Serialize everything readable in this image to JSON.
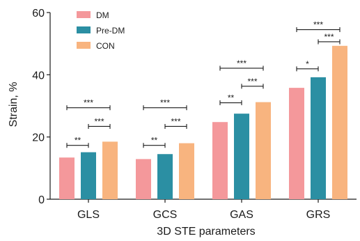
{
  "chart_data": {
    "type": "bar",
    "xlabel": "3D STE parameters",
    "ylabel": "Strain, %",
    "ylim": [
      0,
      60
    ],
    "yticks": [
      0,
      20,
      40,
      60
    ],
    "categories": [
      "GLS",
      "GCS",
      "GAS",
      "GRS"
    ],
    "series": [
      {
        "name": "DM",
        "color": "#f4989b",
        "values": [
          13.4,
          12.9,
          24.8,
          35.8
        ]
      },
      {
        "name": "Pre-DM",
        "color": "#2b8fa3",
        "values": [
          15.1,
          14.5,
          27.5,
          39.2
        ]
      },
      {
        "name": "CON",
        "color": "#f8b47f",
        "values": [
          18.5,
          18.0,
          31.2,
          49.3
        ]
      }
    ],
    "legend_position": "top-left",
    "significance": [
      {
        "category": 0,
        "from": 0,
        "to": 1,
        "y": 17.3,
        "label": "**"
      },
      {
        "category": 0,
        "from": 1,
        "to": 2,
        "y": 23.4,
        "label": "***"
      },
      {
        "category": 0,
        "from": 0,
        "to": 2,
        "y": 29.4,
        "label": "***"
      },
      {
        "category": 1,
        "from": 0,
        "to": 1,
        "y": 17.3,
        "label": "**"
      },
      {
        "category": 1,
        "from": 1,
        "to": 2,
        "y": 23.4,
        "label": "***"
      },
      {
        "category": 1,
        "from": 0,
        "to": 2,
        "y": 29.4,
        "label": "***"
      },
      {
        "category": 2,
        "from": 0,
        "to": 1,
        "y": 31.0,
        "label": "**"
      },
      {
        "category": 2,
        "from": 1,
        "to": 2,
        "y": 36.3,
        "label": "***"
      },
      {
        "category": 2,
        "from": 0,
        "to": 2,
        "y": 42.1,
        "label": "***"
      },
      {
        "category": 3,
        "from": 0,
        "to": 1,
        "y": 41.9,
        "label": "*"
      },
      {
        "category": 3,
        "from": 1,
        "to": 2,
        "y": 50.6,
        "label": "***"
      },
      {
        "category": 3,
        "from": 0,
        "to": 2,
        "y": 54.5,
        "label": "***"
      }
    ]
  }
}
